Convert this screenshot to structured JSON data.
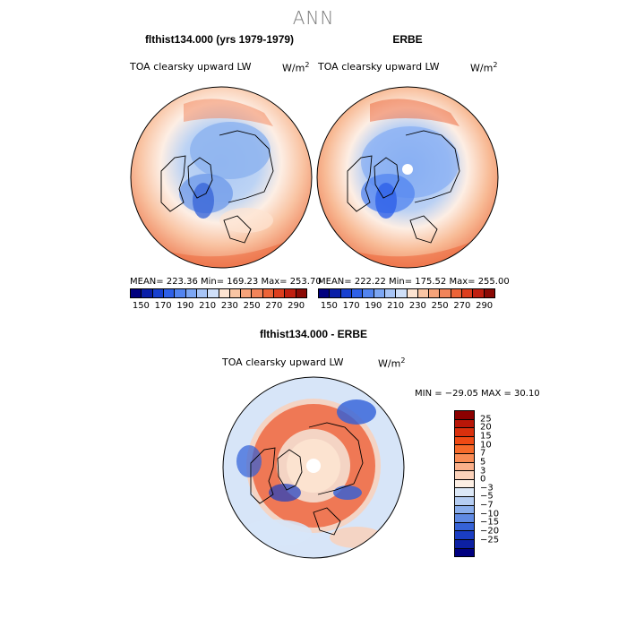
{
  "title": "ANN",
  "panels": [
    {
      "title": "flthist134.000 (yrs 1979-1979)",
      "field_label": "TOA clearsky upward LW",
      "units_base": "W/m",
      "units_exp": "2",
      "stats": "MEAN=  223.36   Min=  169.23   Max=  253.70"
    },
    {
      "title": "ERBE",
      "field_label": "TOA clearsky upward LW",
      "units_base": "W/m",
      "units_exp": "2",
      "stats": "MEAN=  222.22   Min=  175.52   Max=  255.00"
    }
  ],
  "abs_colorbar": {
    "ticks": [
      "150",
      "170",
      "190",
      "210",
      "230",
      "250",
      "270",
      "290"
    ],
    "colors": [
      "#00007f",
      "#0a1fa8",
      "#1740d0",
      "#2e60e8",
      "#5284f0",
      "#7ca6f3",
      "#a7c4f5",
      "#cfdff8",
      "#fde4d2",
      "#f9c5a4",
      "#f6a37a",
      "#f2845a",
      "#ec6438",
      "#dd3e1e",
      "#c01f10",
      "#8b0a05"
    ]
  },
  "difference": {
    "title": "flthist134.000 - ERBE",
    "field_label": "TOA clearsky upward LW",
    "units_base": "W/m",
    "units_exp": "2",
    "stats": "MIN = −29.05  MAX =   30.10",
    "colorbar_labels": [
      "25",
      "20",
      "15",
      "10",
      "7",
      "5",
      "3",
      "0",
      "−3",
      "−5",
      "−7",
      "−10",
      "−15",
      "−20",
      "−25"
    ],
    "colorbar_colors": [
      "#8b0000",
      "#b81608",
      "#d9300d",
      "#ef4a14",
      "#f66a2a",
      "#f98c55",
      "#fbb08a",
      "#fcd2ba",
      "#fdefe4",
      "#dce8f7",
      "#b5cdf2",
      "#8aaeec",
      "#5f8ae3",
      "#3562d6",
      "#1a3dc3",
      "#0c20a3",
      "#000080"
    ]
  },
  "map_colors": {
    "warm": "#f08a62",
    "mid": "#fbd0b6",
    "neutral": "#fdf1ea",
    "cool": "#aac7f3",
    "cold": "#6c98ea",
    "coldest": "#3a66d8",
    "diff_pos": "#ee5a30",
    "diff_neg": "#2f5fd8",
    "diff_light": "#d7e5f8"
  }
}
